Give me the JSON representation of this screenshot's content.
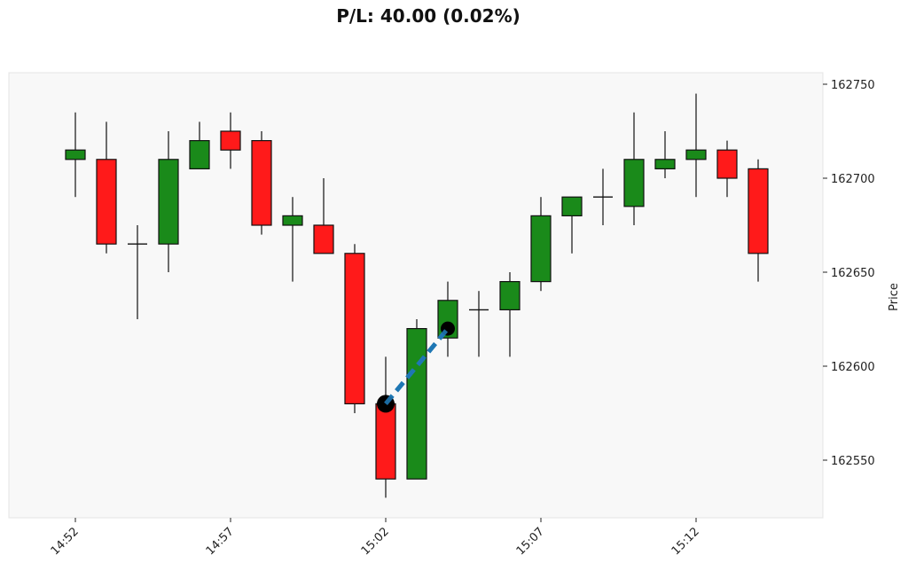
{
  "chart_data": {
    "type": "candlestick",
    "title": "P/L: 40.00 (0.02%)",
    "ylabel": "Price",
    "xlabel": "",
    "ylim": [
      162525,
      162766
    ],
    "yticks": [
      162550,
      162600,
      162650,
      162700,
      162750
    ],
    "xtick_labels": [
      "14:52",
      "14:57",
      "15:02",
      "15:07",
      "15:12"
    ],
    "xtick_indices": [
      0,
      5,
      10,
      15,
      20
    ],
    "colors": {
      "up": "#1a8a1a",
      "down": "#ff1a1a",
      "trade_line": "#1f77b4",
      "background": "#f8f8f8"
    },
    "candles": [
      {
        "t": "14:52",
        "o": 162710,
        "h": 162735,
        "l": 162690,
        "c": 162715
      },
      {
        "t": "14:53",
        "o": 162710,
        "h": 162730,
        "l": 162660,
        "c": 162665
      },
      {
        "t": "14:54",
        "o": 162665,
        "h": 162675,
        "l": 162625,
        "c": 162665
      },
      {
        "t": "14:55",
        "o": 162665,
        "h": 162725,
        "l": 162650,
        "c": 162710
      },
      {
        "t": "14:56",
        "o": 162705,
        "h": 162730,
        "l": 162705,
        "c": 162720
      },
      {
        "t": "14:57",
        "o": 162725,
        "h": 162735,
        "l": 162705,
        "c": 162715
      },
      {
        "t": "14:58",
        "o": 162720,
        "h": 162725,
        "l": 162670,
        "c": 162675
      },
      {
        "t": "14:59",
        "o": 162675,
        "h": 162690,
        "l": 162645,
        "c": 162680
      },
      {
        "t": "15:00",
        "o": 162675,
        "h": 162700,
        "l": 162660,
        "c": 162660
      },
      {
        "t": "15:01",
        "o": 162660,
        "h": 162665,
        "l": 162575,
        "c": 162580
      },
      {
        "t": "15:02",
        "o": 162580,
        "h": 162605,
        "l": 162530,
        "c": 162540
      },
      {
        "t": "15:03",
        "o": 162540,
        "h": 162625,
        "l": 162540,
        "c": 162620
      },
      {
        "t": "15:04",
        "o": 162615,
        "h": 162645,
        "l": 162605,
        "c": 162635
      },
      {
        "t": "15:05",
        "o": 162630,
        "h": 162640,
        "l": 162605,
        "c": 162630
      },
      {
        "t": "15:06",
        "o": 162630,
        "h": 162650,
        "l": 162605,
        "c": 162645
      },
      {
        "t": "15:07",
        "o": 162645,
        "h": 162690,
        "l": 162640,
        "c": 162680
      },
      {
        "t": "15:08",
        "o": 162680,
        "h": 162690,
        "l": 162660,
        "c": 162690
      },
      {
        "t": "15:09",
        "o": 162690,
        "h": 162705,
        "l": 162675,
        "c": 162690
      },
      {
        "t": "15:10",
        "o": 162685,
        "h": 162735,
        "l": 162675,
        "c": 162710
      },
      {
        "t": "15:11",
        "o": 162705,
        "h": 162725,
        "l": 162700,
        "c": 162710
      },
      {
        "t": "15:12",
        "o": 162710,
        "h": 162745,
        "l": 162690,
        "c": 162715
      },
      {
        "t": "15:13",
        "o": 162715,
        "h": 162720,
        "l": 162690,
        "c": 162700
      },
      {
        "t": "15:14",
        "o": 162705,
        "h": 162710,
        "l": 162645,
        "c": 162660
      }
    ],
    "trade": {
      "entry": {
        "index": 10,
        "price": 162580
      },
      "exit": {
        "index": 12,
        "price": 162620
      }
    }
  }
}
